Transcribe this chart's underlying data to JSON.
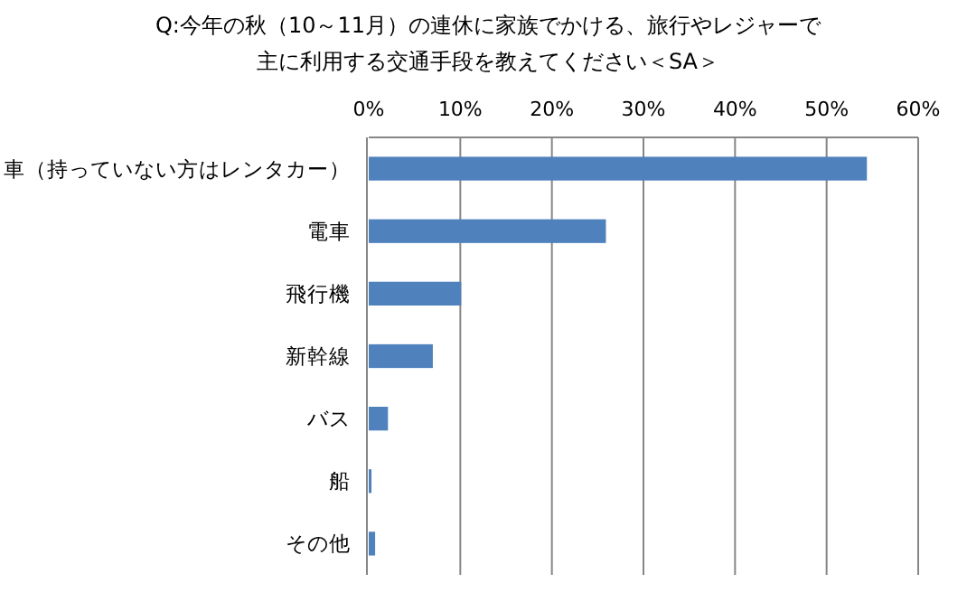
{
  "chart_data": {
    "type": "bar",
    "orientation": "horizontal",
    "title": "Q:今年の秋（10～11月）の連休に家族でかける、旅行やレジャーで主に利用する交通手段を教えてください＜SA＞",
    "categories": [
      "車（持っていない方はレンタカー）",
      "電車",
      "飛行機",
      "新幹線",
      "バス",
      "船",
      "その他"
    ],
    "values": [
      54.4,
      25.9,
      10.1,
      7.0,
      2.1,
      0.3,
      0.7
    ],
    "color": "#4f81bd",
    "xlim": [
      0,
      60
    ],
    "xticks": [
      {
        "value": 0,
        "label": "0%"
      },
      {
        "value": 10,
        "label": "10%"
      },
      {
        "value": 20,
        "label": "20%"
      },
      {
        "value": 30,
        "label": "30%"
      },
      {
        "value": 40,
        "label": "40%"
      },
      {
        "value": 50,
        "label": "50%"
      },
      {
        "value": 60,
        "label": "60%"
      }
    ],
    "grid": "x"
  }
}
